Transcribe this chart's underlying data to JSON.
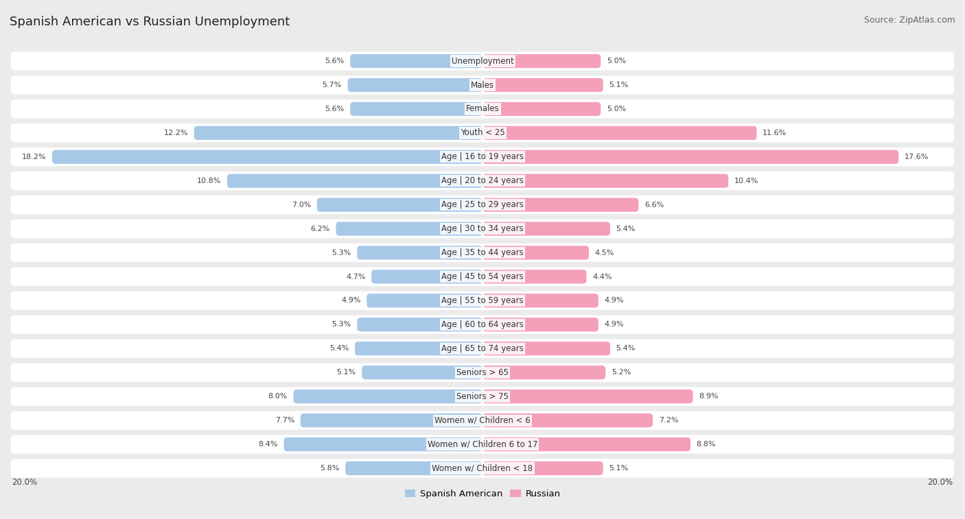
{
  "title": "Spanish American vs Russian Unemployment",
  "source": "Source: ZipAtlas.com",
  "categories": [
    "Unemployment",
    "Males",
    "Females",
    "Youth < 25",
    "Age | 16 to 19 years",
    "Age | 20 to 24 years",
    "Age | 25 to 29 years",
    "Age | 30 to 34 years",
    "Age | 35 to 44 years",
    "Age | 45 to 54 years",
    "Age | 55 to 59 years",
    "Age | 60 to 64 years",
    "Age | 65 to 74 years",
    "Seniors > 65",
    "Seniors > 75",
    "Women w/ Children < 6",
    "Women w/ Children 6 to 17",
    "Women w/ Children < 18"
  ],
  "spanish_american": [
    5.6,
    5.7,
    5.6,
    12.2,
    18.2,
    10.8,
    7.0,
    6.2,
    5.3,
    4.7,
    4.9,
    5.3,
    5.4,
    5.1,
    8.0,
    7.7,
    8.4,
    5.8
  ],
  "russian": [
    5.0,
    5.1,
    5.0,
    11.6,
    17.6,
    10.4,
    6.6,
    5.4,
    4.5,
    4.4,
    4.9,
    4.9,
    5.4,
    5.2,
    8.9,
    7.2,
    8.8,
    5.1
  ],
  "spanish_color": "#a8c8e8",
  "russian_color": "#f4a0b8",
  "background_color": "#ebebeb",
  "row_bg_color": "#ffffff",
  "row_alt_bg_color": "#f7f7f7",
  "max_val": 20.0,
  "legend_spanish": "Spanish American",
  "legend_russian": "Russian",
  "axis_label_left": "20.0%",
  "axis_label_right": "20.0%",
  "title_fontsize": 13,
  "source_fontsize": 9,
  "label_fontsize": 8.5,
  "value_fontsize": 8
}
